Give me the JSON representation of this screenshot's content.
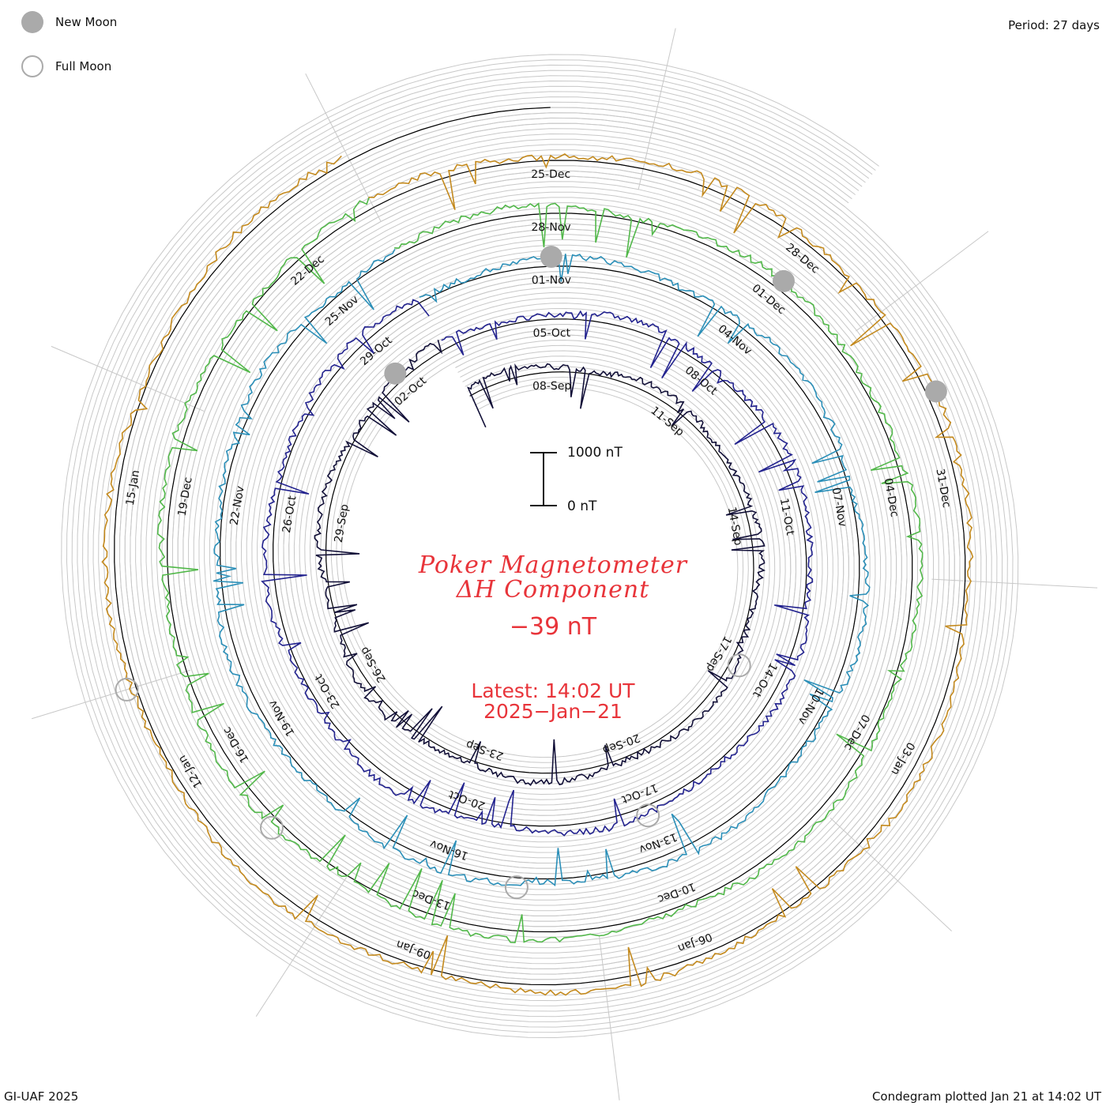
{
  "legend": {
    "new_moon": "New Moon",
    "full_moon": "Full Moon",
    "moon_color": "#aaaaaa"
  },
  "period_text": "Period: 27 days",
  "footer_left": "GI-UAF 2025",
  "footer_right": "Condegram plotted Jan 21 at 14:02 UT",
  "scale": {
    "top_label": "1000 nT",
    "bottom_label": "0 nT"
  },
  "title_line1": "Poker Magnetometer",
  "title_line2": "ΔH Component",
  "current_value": "−39 nT",
  "latest_time": "Latest:  14:02 UT",
  "latest_date": "2025−Jan−21",
  "accent_color": "#e8343a",
  "chart_data": {
    "type": "line",
    "style": "spiral condegram",
    "period_days": 27,
    "scale_nT": 1000,
    "rings": [
      {
        "period": "06-Sep to 03-Oct",
        "color": "#121038",
        "date_labels": [
          "08-Sep",
          "11-Sep",
          "14-Sep",
          "17-Sep",
          "20-Sep",
          "23-Sep",
          "26-Sep",
          "29-Sep",
          "02-Oct"
        ]
      },
      {
        "period": "03-Oct to 30-Oct",
        "color": "#23238f",
        "date_labels": [
          "05-Oct",
          "08-Oct",
          "11-Oct",
          "14-Oct",
          "17-Oct",
          "20-Oct",
          "23-Oct",
          "26-Oct",
          "29-Oct"
        ]
      },
      {
        "period": "30-Oct to 26-Nov",
        "color": "#2b8fb8",
        "date_labels": [
          "01-Nov",
          "04-Nov",
          "07-Nov",
          "10-Nov",
          "13-Nov",
          "16-Nov",
          "19-Nov",
          "22-Nov",
          "25-Nov"
        ]
      },
      {
        "period": "26-Nov to 23-Dec",
        "color": "#52b84a",
        "date_labels": [
          "28-Nov",
          "01-Dec",
          "04-Dec",
          "07-Dec",
          "10-Dec",
          "13-Dec",
          "16-Dec",
          "19-Dec",
          "22-Dec"
        ]
      },
      {
        "period": "23-Dec to 21-Jan",
        "color": "#c48a1e",
        "date_labels": [
          "25-Dec",
          "28-Dec",
          "31-Dec",
          "03-Jan",
          "06-Jan",
          "09-Jan",
          "12-Jan",
          "15-Jan"
        ]
      }
    ],
    "new_moons": [
      "02-Oct",
      "01-Nov",
      "01-Dec",
      "30-Dec"
    ],
    "full_moons": [
      "17-Sep",
      "17-Oct",
      "15-Nov",
      "15-Dec",
      "13-Jan"
    ],
    "latest_value_nT": -39
  }
}
